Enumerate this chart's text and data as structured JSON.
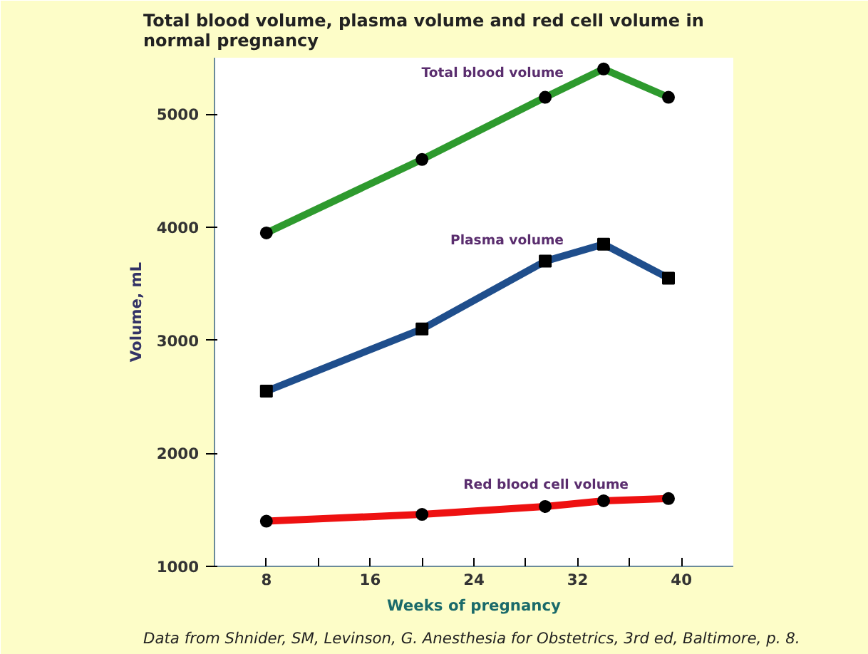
{
  "chart_data": {
    "type": "line",
    "title": "Total blood volume, plasma volume and red cell volume in normal pregnancy",
    "xlabel": "Weeks of pregnancy",
    "ylabel": "Volume, mL",
    "x": [
      8,
      20,
      29.5,
      34,
      39
    ],
    "series": [
      {
        "name": "Total blood volume",
        "color": "#2e9a2e",
        "marker": "circle",
        "values": [
          3950,
          4600,
          5150,
          5400,
          5150
        ]
      },
      {
        "name": "Plasma volume",
        "color": "#1f4e8c",
        "marker": "square",
        "values": [
          2550,
          3100,
          3700,
          3850,
          3550
        ]
      },
      {
        "name": "Red blood cell volume",
        "color": "#ee1111",
        "marker": "circle",
        "values": [
          1400,
          1460,
          1530,
          1580,
          1600
        ]
      }
    ],
    "xlim": [
      4,
      44
    ],
    "ylim": [
      1000,
      5500
    ],
    "xticks": [
      8,
      {
        "value": 12,
        "label": null
      },
      16,
      {
        "value": 20,
        "label": null
      },
      24,
      {
        "value": 28,
        "label": null
      },
      32,
      {
        "value": 36,
        "label": null
      },
      40
    ],
    "yticks": [
      1000,
      2000,
      3000,
      4000,
      5000
    ],
    "grid": false,
    "line_style": "solid",
    "annotations": [
      "Data from Shnider, SM, Levinson, G. Anesthesia for Obstetrics, 3rd ed, Baltimore, p. 8."
    ]
  }
}
